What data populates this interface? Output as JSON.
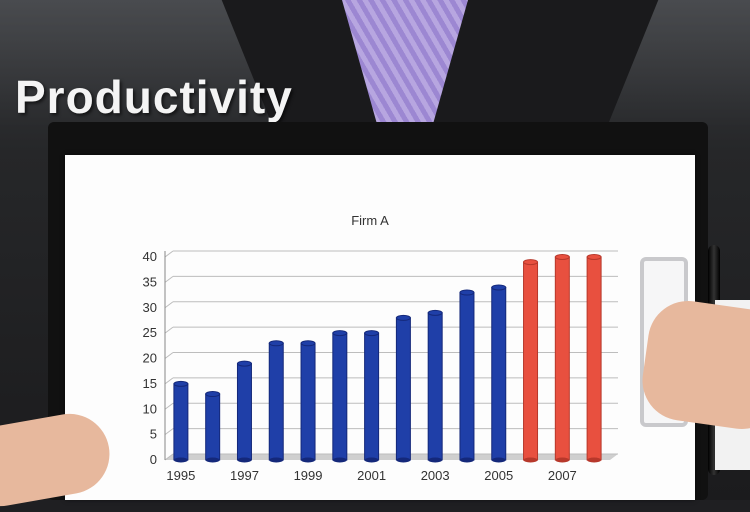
{
  "headline": "Productivity",
  "chart_data": {
    "type": "bar",
    "title": "Firm A",
    "xlabel": "",
    "ylabel": "",
    "categories": [
      "1995",
      "1996",
      "1997",
      "1998",
      "1999",
      "2000",
      "2001",
      "2002",
      "2003",
      "2004",
      "2005",
      "2006",
      "2007",
      "2008"
    ],
    "x_tick_labels": [
      "1995",
      "1997",
      "1999",
      "2001",
      "2003",
      "2005",
      "2007"
    ],
    "values": [
      15,
      13,
      19,
      23,
      23,
      25,
      25,
      28,
      29,
      33,
      34,
      39,
      40,
      40
    ],
    "ylim": [
      0,
      40
    ],
    "y_ticks": [
      0,
      5,
      10,
      15,
      20,
      25,
      30,
      35,
      40
    ],
    "grid": true,
    "colors": {
      "historical": "#1f3fa8",
      "projected": "#e8503f"
    },
    "projected_from_index": 11
  }
}
